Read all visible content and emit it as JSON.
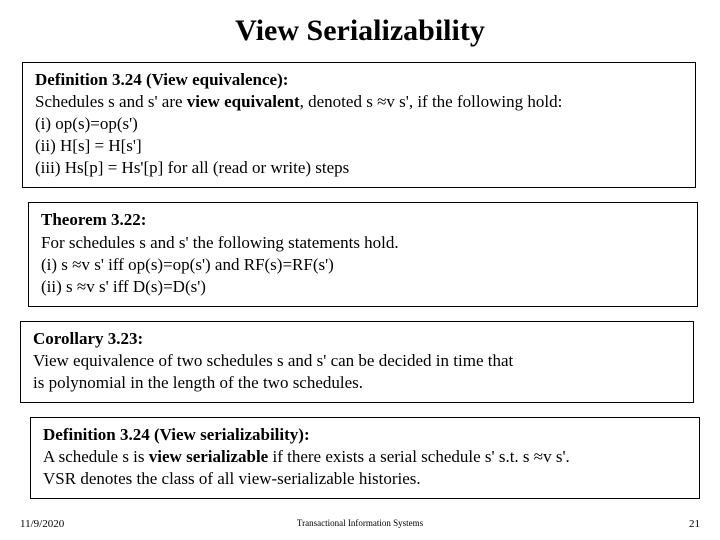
{
  "title": "View Serializability",
  "box1": {
    "heading": "Definition 3.24 (View equivalence):",
    "line1_pre": "Schedules s and s' are ",
    "line1_bold": "view equivalent",
    "line1_post": ", denoted s ≈v s', if the following hold:",
    "item_i": "(i)   op(s)=op(s')",
    "item_ii": "(ii)  H[s] = H[s']",
    "item_iii": "(iii)  Hs[p] = Hs'[p] for all (read or write) steps"
  },
  "box2": {
    "heading": "Theorem 3.22:",
    "line1": "For schedules s and s' the following statements hold.",
    "item_i": "(i)   s ≈v s' iff op(s)=op(s') and RF(s)=RF(s')",
    "item_ii": "(ii)  s ≈v s' iff D(s)=D(s')"
  },
  "box3": {
    "heading": "Corollary 3.23:",
    "line1": "View equivalence of two schedules s and s' can be decided in time that",
    "line2": "is polynomial in the length of the two schedules."
  },
  "box4": {
    "heading": "Definition 3.24 (View serializability):",
    "line1_pre": "A schedule s is ",
    "line1_bold": "view serializable",
    "line1_post": " if there exists a serial schedule s' s.t. s ≈v s'.",
    "line2": "VSR denotes the class of all view-serializable histories."
  },
  "footer": {
    "date": "11/9/2020",
    "center": "Transactional Information Systems",
    "page": "21"
  }
}
